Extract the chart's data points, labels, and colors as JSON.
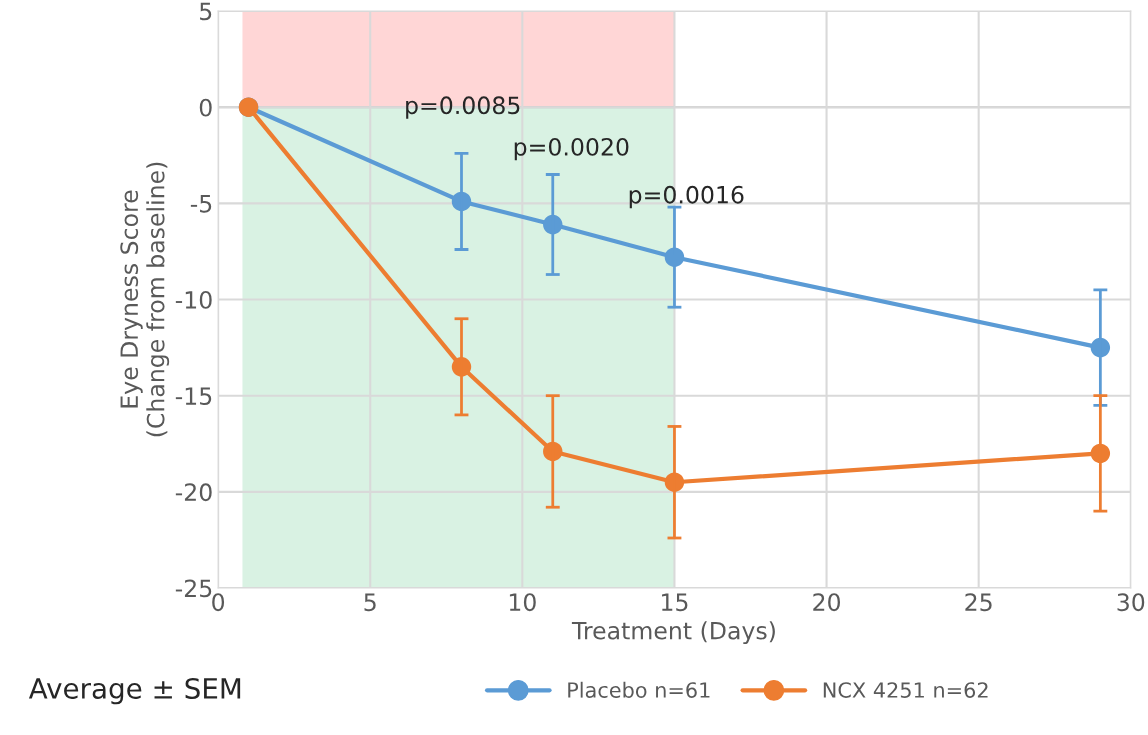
{
  "chart_data": {
    "type": "line",
    "xlabel": "Treatment (Days)",
    "ylabel": "Eye Dryness Score\n(Change from baseline)",
    "xlim": [
      0,
      30
    ],
    "xticks": [
      0,
      5,
      10,
      15,
      20,
      25,
      30
    ],
    "ylim": [
      -25,
      5
    ],
    "yticks": [
      -25,
      -20,
      -15,
      -10,
      -5,
      0,
      5
    ],
    "grid": true,
    "legend": "bottom",
    "marker": "circle",
    "line_style": "solid",
    "series": [
      {
        "name": "Placebo n=61",
        "color": "#5b9bd5",
        "x": [
          1,
          8,
          11,
          15,
          29
        ],
        "values": [
          0,
          -4.9,
          -6.1,
          -7.8,
          -12.5
        ],
        "errors": [
          null,
          2.5,
          2.6,
          2.6,
          3
        ]
      },
      {
        "name": "NCX 4251 n=62",
        "color": "#ed7d31",
        "x": [
          1,
          8,
          11,
          15,
          29
        ],
        "values": [
          0,
          -13.5,
          -17.9,
          -19.5,
          -18
        ],
        "errors": [
          null,
          2.5,
          2.9,
          2.9,
          3
        ]
      }
    ],
    "bands": [
      {
        "axis": "x",
        "from": 0.8,
        "to": 15,
        "color": "#d9f2e3"
      },
      {
        "axis": "y",
        "from": 0,
        "to": 5,
        "color": "#ffd6d6"
      }
    ],
    "annotations": [
      "p=0.0085",
      "p=0.0020",
      "p=0.0016",
      "Average ± SEM"
    ]
  }
}
